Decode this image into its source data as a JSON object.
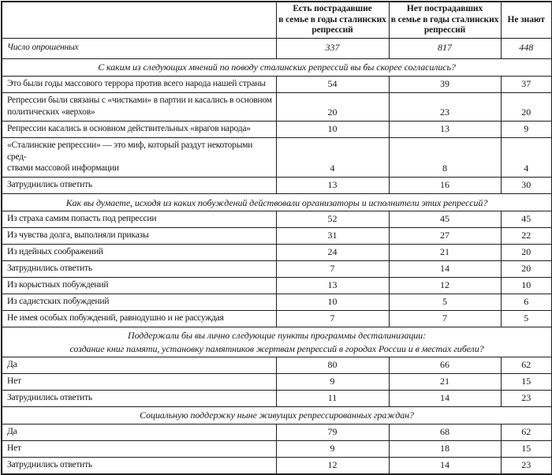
{
  "table": {
    "header": {
      "col0": "",
      "col1": "Есть пострадавшие\nв семье в годы сталинских\nрепрессий",
      "col2": "Нет пострадавших\nв семье в годы сталинских\nрепрессий",
      "col3": "Не знают"
    },
    "respondents": {
      "label": "Число опрошенных",
      "values": [
        "337",
        "817",
        "448"
      ]
    },
    "sections": [
      {
        "title": "С каким из следующих мнений по поводу сталинских репрессий вы бы скорее согласились?",
        "rows": [
          {
            "label": "Это были годы массового террора против всего народа нашей страны",
            "values": [
              54,
              39,
              37
            ]
          },
          {
            "label": "Репрессии были связаны с «чистками» в партии и касались в основном\nполитических «верхов»",
            "values": [
              20,
              23,
              20
            ]
          },
          {
            "label": "Репрессии касались в основном действительных «врагов народа»",
            "values": [
              10,
              13,
              9
            ]
          },
          {
            "label": "«Сталинские репрессии» — это миф, который раздут некоторыми сред-\nствами массовой информации",
            "values": [
              4,
              8,
              4
            ]
          },
          {
            "label": "Затруднились ответить",
            "values": [
              13,
              16,
              30
            ]
          }
        ]
      },
      {
        "title": "Как вы думаете, исходя из каких побуждений действовали организаторы и исполнители этих репрессий?",
        "rows": [
          {
            "label": "Из страха самим попасть под репрессии",
            "values": [
              52,
              45,
              45
            ]
          },
          {
            "label": "Из чувства долга, выполняли приказы",
            "values": [
              31,
              27,
              22
            ]
          },
          {
            "label": "Из идейных соображений",
            "values": [
              24,
              21,
              20
            ]
          },
          {
            "label": "Затруднились ответить",
            "values": [
              7,
              14,
              20
            ]
          },
          {
            "label": "Из корыстных побуждений",
            "values": [
              13,
              12,
              10
            ]
          },
          {
            "label": "Из садистских побуждений",
            "values": [
              10,
              5,
              6
            ]
          },
          {
            "label": "Не имея особых побуждений, равнодушно и не рассуждая",
            "values": [
              7,
              7,
              5
            ]
          }
        ]
      },
      {
        "title": "Поддержали бы вы лично следующие пункты программы десталинизации:\nсоздание книг памяти, установку памятников жертвам репрессий в городах России и в местах гибели?",
        "rows": [
          {
            "label": "Да",
            "values": [
              80,
              66,
              62
            ]
          },
          {
            "label": "Нет",
            "values": [
              9,
              21,
              15
            ]
          },
          {
            "label": "Затруднились ответить",
            "values": [
              11,
              14,
              23
            ]
          }
        ]
      },
      {
        "title": "Социальную поддержку ныне живущих репрессированных граждан?",
        "rows": [
          {
            "label": "Да",
            "values": [
              79,
              68,
              62
            ]
          },
          {
            "label": "Нет",
            "values": [
              9,
              18,
              15
            ]
          },
          {
            "label": "Затруднились ответить",
            "values": [
              12,
              14,
              23
            ]
          }
        ]
      }
    ]
  }
}
